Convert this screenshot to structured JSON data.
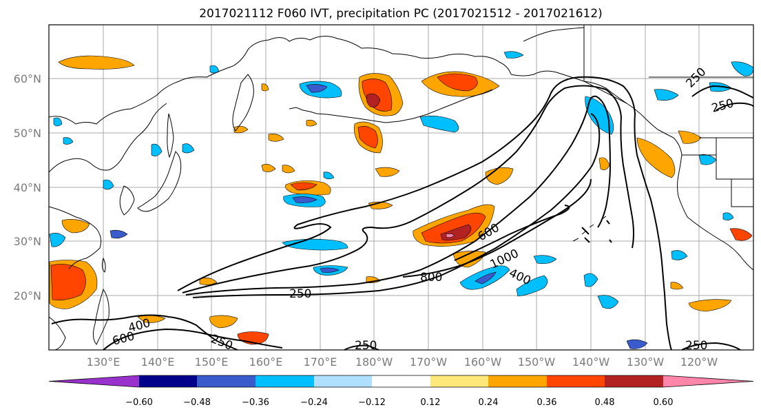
{
  "title": "2017021112 F060 IVT, precipitation PC (2017021512 - 2017021612)",
  "lat_labels": [
    "60°N",
    "50°N",
    "40°N",
    "30°N",
    "20°N"
  ],
  "lon_labels": [
    "130°E",
    "140°E",
    "150°E",
    "160°E",
    "170°E",
    "180°W",
    "170°W",
    "160°W",
    "150°W",
    "140°W",
    "130°W",
    "120°W"
  ],
  "ivt_contour_labels": [
    "250",
    "250",
    "250",
    "250",
    "250",
    "400",
    "400",
    "600",
    "600",
    "800",
    "1000"
  ],
  "colorbar": {
    "ticks": [
      "−0.60",
      "−0.48",
      "−0.36",
      "−0.24",
      "−0.12",
      "0.12",
      "0.24",
      "0.36",
      "0.48",
      "0.60"
    ],
    "colors": [
      "#9932cc",
      "#00008b",
      "#3a5bcc",
      "#00bfff",
      "#b0e0ff",
      "#ffffff",
      "#ffe87a",
      "#ffa500",
      "#ff4500",
      "#b22222",
      "#ff85ab"
    ]
  },
  "colors": {
    "coastline": "#000000",
    "gridline": "#a9a9a9",
    "tick_label": "#7a7a7a",
    "ivt_contour": "#000000"
  }
}
